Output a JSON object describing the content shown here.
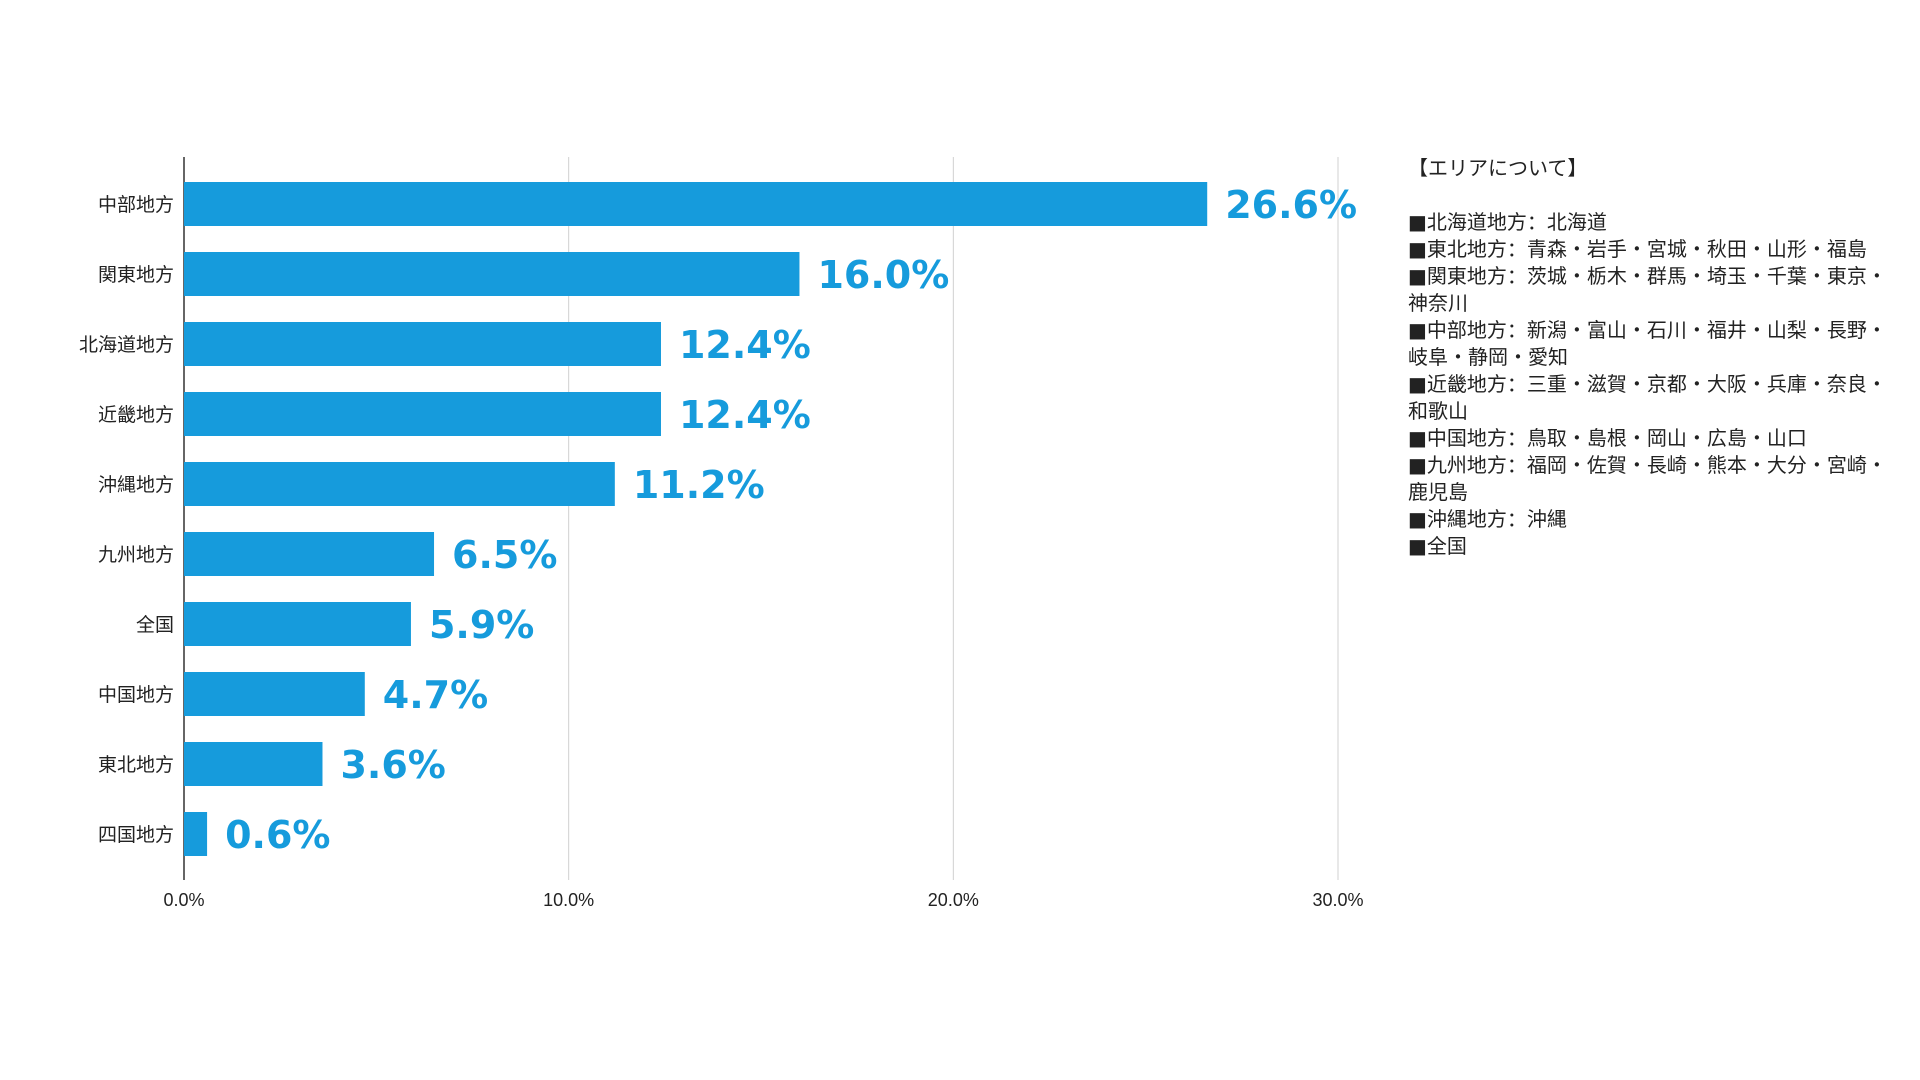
{
  "colors": {
    "bar": "#169bdc",
    "value_label": "#169bdc",
    "grid": "#d0d0d0",
    "axis": "#333333"
  },
  "chart_data": {
    "type": "bar",
    "orientation": "horizontal",
    "categories": [
      "中部地方",
      "関東地方",
      "北海道地方",
      "近畿地方",
      "沖縄地方",
      "九州地方",
      "全国",
      "中国地方",
      "東北地方",
      "四国地方"
    ],
    "values": [
      26.6,
      16.0,
      12.4,
      12.4,
      11.2,
      6.5,
      5.9,
      4.7,
      3.6,
      0.6
    ],
    "value_labels": [
      "26.6%",
      "16.0%",
      "12.4%",
      "12.4%",
      "11.2%",
      "6.5%",
      "5.9%",
      "4.7%",
      "3.6%",
      "0.6%"
    ],
    "xlim": [
      0,
      30
    ],
    "xticks": [
      0,
      10,
      20,
      30
    ],
    "xtick_labels": [
      "0.0%",
      "10.0%",
      "20.0%",
      "30.0%"
    ],
    "grid": true,
    "legend": "right"
  },
  "legend": {
    "title": "【エリアについて】",
    "items": [
      "■北海道地方：北海道",
      "■東北地方：青森・岩手・宮城・秋田・山形・福島",
      "■関東地方：茨城・栃木・群馬・埼玉・千葉・東京・神奈川",
      "■中部地方：新潟・富山・石川・福井・山梨・長野・岐阜・静岡・愛知",
      "■近畿地方：三重・滋賀・京都・大阪・兵庫・奈良・和歌山",
      "■中国地方：鳥取・島根・岡山・広島・山口",
      "■九州地方：福岡・佐賀・長崎・熊本・大分・宮崎・鹿児島",
      "■沖縄地方：沖縄",
      "■全国"
    ]
  }
}
